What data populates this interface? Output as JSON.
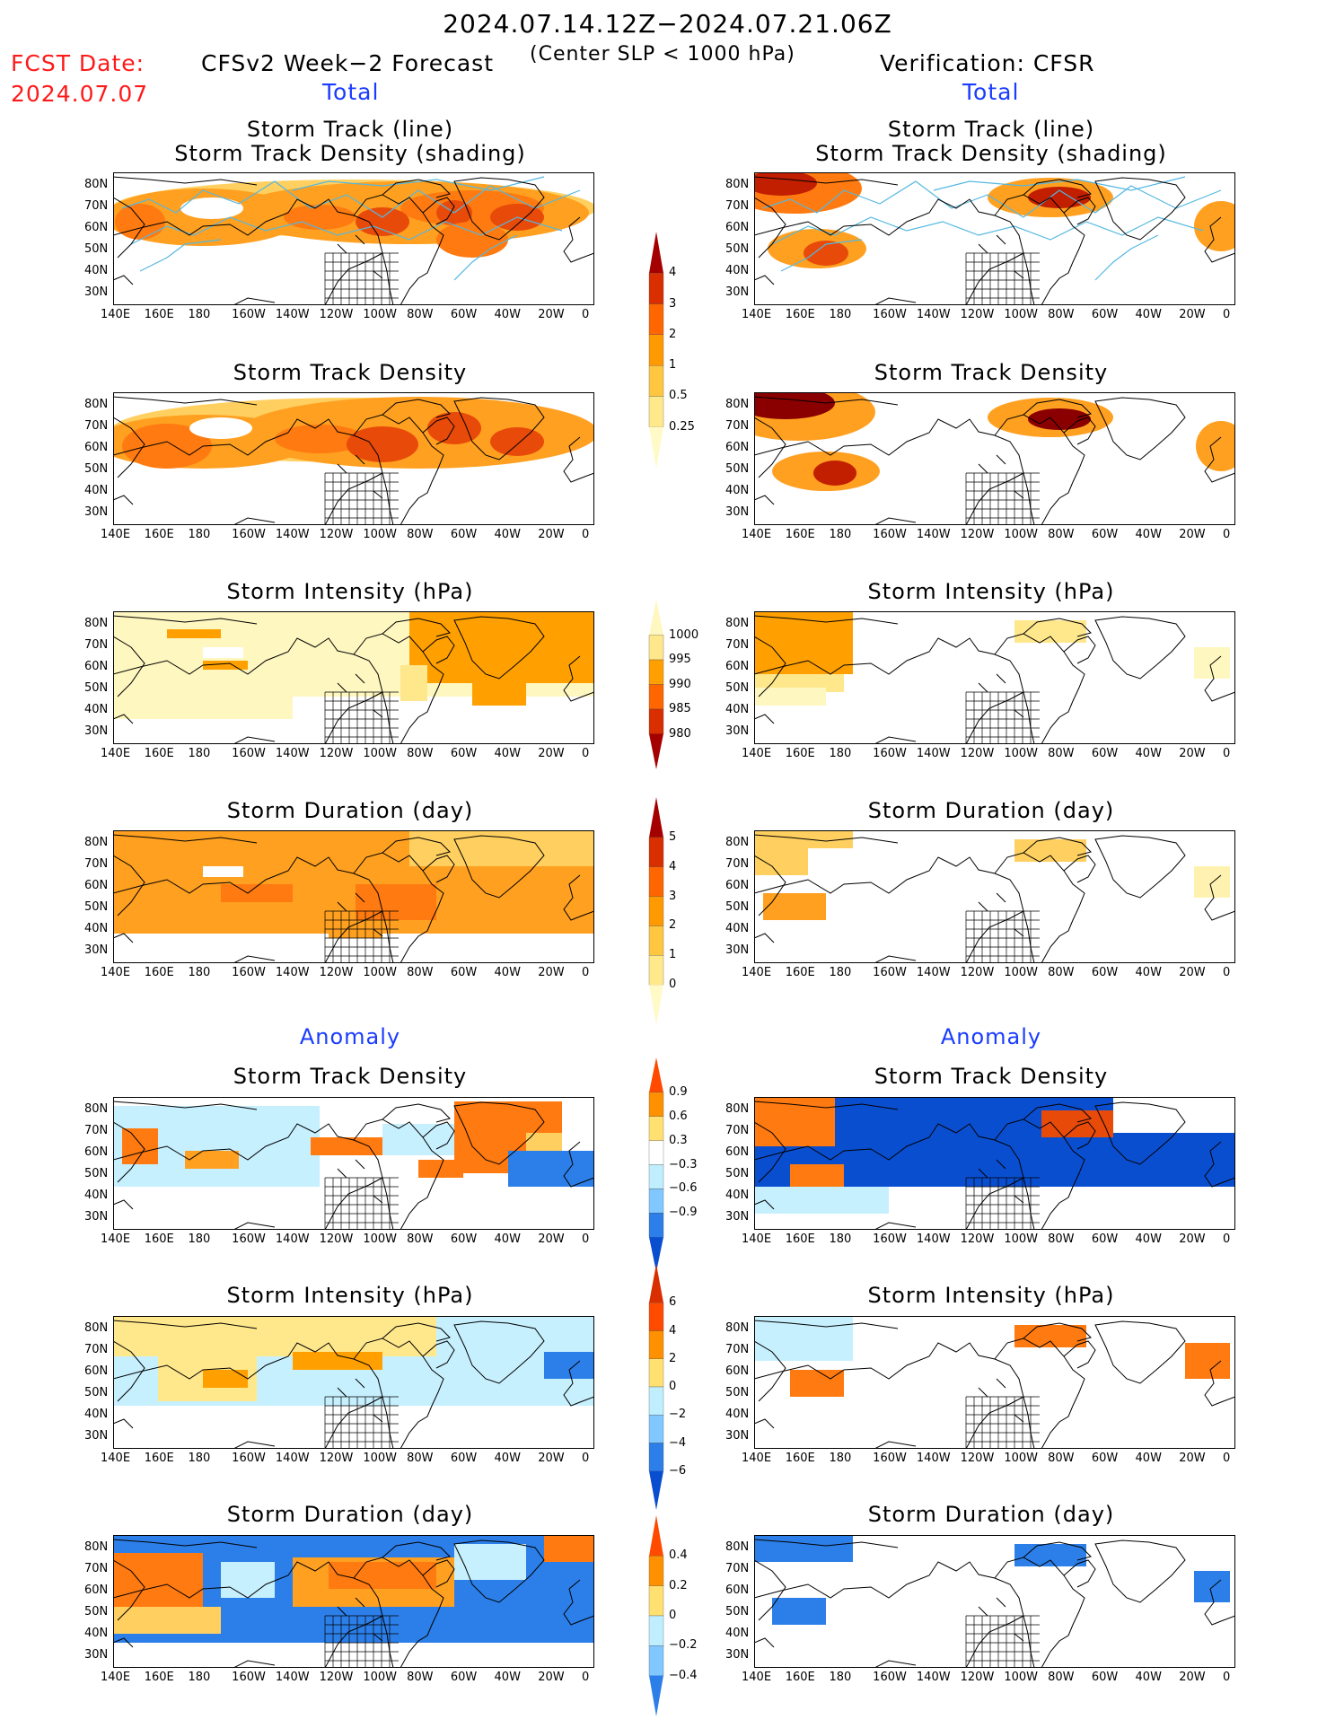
{
  "header": {
    "date_range": "2024.07.14.12Z−2024.07.21.06Z",
    "subtitle": "(Center SLP < 1000 hPa)",
    "fcst_label": "FCST Date:",
    "fcst_date": "2024.07.07",
    "left_title": "CFSv2 Week−2 Forecast",
    "right_title": "Verification: CFSR",
    "left_total": "Total",
    "right_total": "Total",
    "left_anomaly": "Anomaly",
    "right_anomaly": "Anomaly"
  },
  "panel_titles": {
    "track_line": "Storm Track (line)",
    "track_shading": "Storm Track Density (shading)",
    "density": "Storm Track Density",
    "intensity": "Storm Intensity (hPa)",
    "duration": "Storm Duration (day)"
  },
  "axes": {
    "lat_labels": [
      "80N",
      "70N",
      "60N",
      "50N",
      "40N",
      "30N"
    ],
    "lon_labels": [
      "140E",
      "160E",
      "180",
      "160W",
      "140W",
      "120W",
      "100W",
      "80W",
      "60W",
      "40W",
      "20W",
      "0"
    ]
  },
  "colorbars": {
    "density": {
      "labels": [
        "4",
        "3",
        "2",
        "1",
        "0.5",
        "0.25"
      ],
      "colors": [
        "#a50000",
        "#d92e00",
        "#ff6600",
        "#ff9900",
        "#ffc640",
        "#ffe98a",
        "#fffac8"
      ]
    },
    "intensity": {
      "labels": [
        "1000",
        "995",
        "990",
        "985",
        "980"
      ],
      "colors": [
        "#fff7c0",
        "#ffe78c",
        "#ffa000",
        "#ff6600",
        "#d92e00",
        "#a50000"
      ]
    },
    "duration": {
      "labels": [
        "5",
        "4",
        "3",
        "2",
        "1",
        "0"
      ],
      "colors": [
        "#a50000",
        "#d92e00",
        "#ff6600",
        "#ff9900",
        "#ffc640",
        "#ffe98a",
        "#fffac8"
      ]
    },
    "anom_density": {
      "labels": [
        "0.9",
        "0.6",
        "0.3",
        "−0.3",
        "−0.6",
        "−0.9"
      ],
      "colors": [
        "#ff4a00",
        "#ff9000",
        "#ffe070",
        "#ffffff",
        "#bfeeff",
        "#80c8ff",
        "#2c7fe8",
        "#0a4ed0"
      ]
    },
    "anom_intensity": {
      "labels": [
        "6",
        "4",
        "2",
        "0",
        "−2",
        "−4",
        "−6"
      ],
      "colors": [
        "#d92e00",
        "#ff4a00",
        "#ff9000",
        "#ffe070",
        "#bfeeff",
        "#80c8ff",
        "#2c7fe8",
        "#0a4ed0"
      ]
    },
    "anom_duration": {
      "labels": [
        "0.4",
        "0.2",
        "0",
        "−0.2",
        "−0.4"
      ],
      "colors": [
        "#ff4a00",
        "#ff9000",
        "#ffe070",
        "#bfeeff",
        "#80c8ff",
        "#2c7fe8"
      ]
    }
  },
  "colors": {
    "forecast_red": "#ff1a1a",
    "section_blue": "#1a3cff",
    "track_line": "#55b8e0"
  }
}
